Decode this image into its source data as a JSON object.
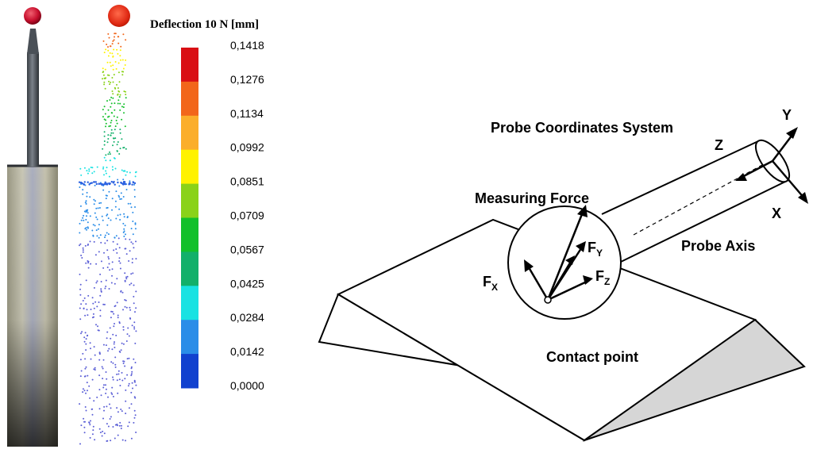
{
  "legend": {
    "title": "Deflection 10 N [mm]",
    "bands": [
      {
        "label": "0,1418",
        "color": "#d90f14"
      },
      {
        "label": "0,1276",
        "color": "#f2661a"
      },
      {
        "label": "0,1134",
        "color": "#fbae2b"
      },
      {
        "label": "0,0992",
        "color": "#fff200"
      },
      {
        "label": "0,0851",
        "color": "#8ad219"
      },
      {
        "label": "0,0709",
        "color": "#12c02a"
      },
      {
        "label": "0,0567",
        "color": "#12b06a"
      },
      {
        "label": "0,0425",
        "color": "#19e2e2"
      },
      {
        "label": "0,0284",
        "color": "#2a8de8"
      },
      {
        "label": "0,0142",
        "color": "#1141cf"
      },
      {
        "label": "0,0000",
        "color": "#1141cf"
      }
    ]
  },
  "diagram": {
    "probe_coordinates_system": "Probe Coordinates System",
    "measuring_force": "Measuring Force",
    "probe_axis": "Probe Axis",
    "contact_point": "Contact point",
    "axis_x": "X",
    "axis_y": "Y",
    "axis_z": "Z",
    "fx_main": "F",
    "fx_sub": "X",
    "fy_main": "F",
    "fy_sub": "Y",
    "fz_main": "F",
    "fz_sub": "Z"
  }
}
